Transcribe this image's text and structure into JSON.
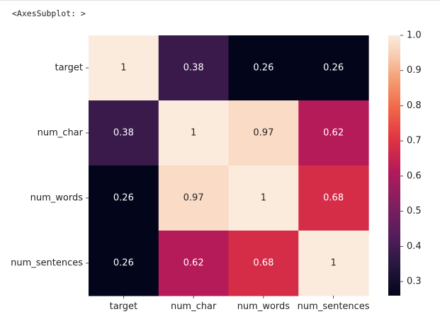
{
  "output_repr": "<AxesSubplot: >",
  "chart_data": {
    "type": "heatmap",
    "rows": [
      "target",
      "num_char",
      "num_words",
      "num_sentences"
    ],
    "columns": [
      "target",
      "num_char",
      "num_words",
      "num_sentences"
    ],
    "values": [
      [
        1,
        0.38,
        0.26,
        0.26
      ],
      [
        0.38,
        1,
        0.97,
        0.62
      ],
      [
        0.26,
        0.97,
        1,
        0.68
      ],
      [
        0.26,
        0.62,
        0.68,
        1
      ]
    ],
    "colormap": "rocket",
    "vmin": 0.26,
    "vmax": 1.0,
    "colorbar_ticks": [
      "1.0",
      "0.9",
      "0.8",
      "0.7",
      "0.6",
      "0.5",
      "0.4",
      "0.3"
    ],
    "colorbar_tick_values": [
      1.0,
      0.9,
      0.8,
      0.7,
      0.6,
      0.5,
      0.4,
      0.3
    ],
    "colors": {
      "low": "#03051a",
      "high": "#faebdd"
    }
  }
}
